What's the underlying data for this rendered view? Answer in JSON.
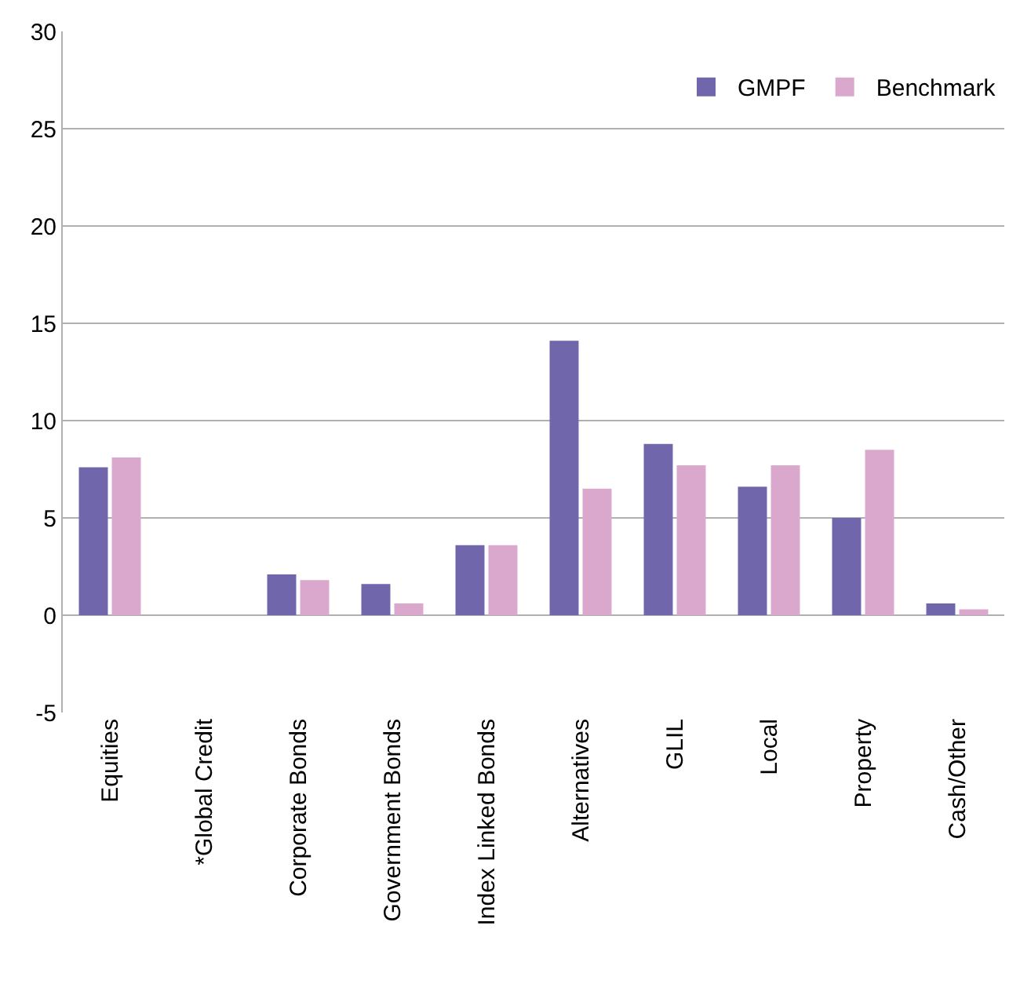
{
  "chart_data": {
    "type": "bar",
    "categories": [
      "Equities",
      "*Global Credit",
      "Corporate Bonds",
      "Government Bonds",
      "Index Linked Bonds",
      "Alternatives",
      "GLIL",
      "Local",
      "Property",
      "Cash/Other"
    ],
    "series": [
      {
        "name": "GMPF",
        "color": "#7066ab",
        "values": [
          7.6,
          0,
          2.1,
          1.6,
          3.6,
          14.1,
          8.8,
          6.6,
          5.0,
          0.6
        ]
      },
      {
        "name": "Benchmark",
        "color": "#dba8cd",
        "values": [
          8.1,
          0,
          1.8,
          0.6,
          3.6,
          6.5,
          7.7,
          7.7,
          8.5,
          0.3
        ]
      }
    ],
    "ylim": [
      -5,
      30
    ],
    "yticks": [
      -5,
      0,
      5,
      10,
      15,
      20,
      25,
      30
    ],
    "grid": "y",
    "legend": "top right"
  }
}
